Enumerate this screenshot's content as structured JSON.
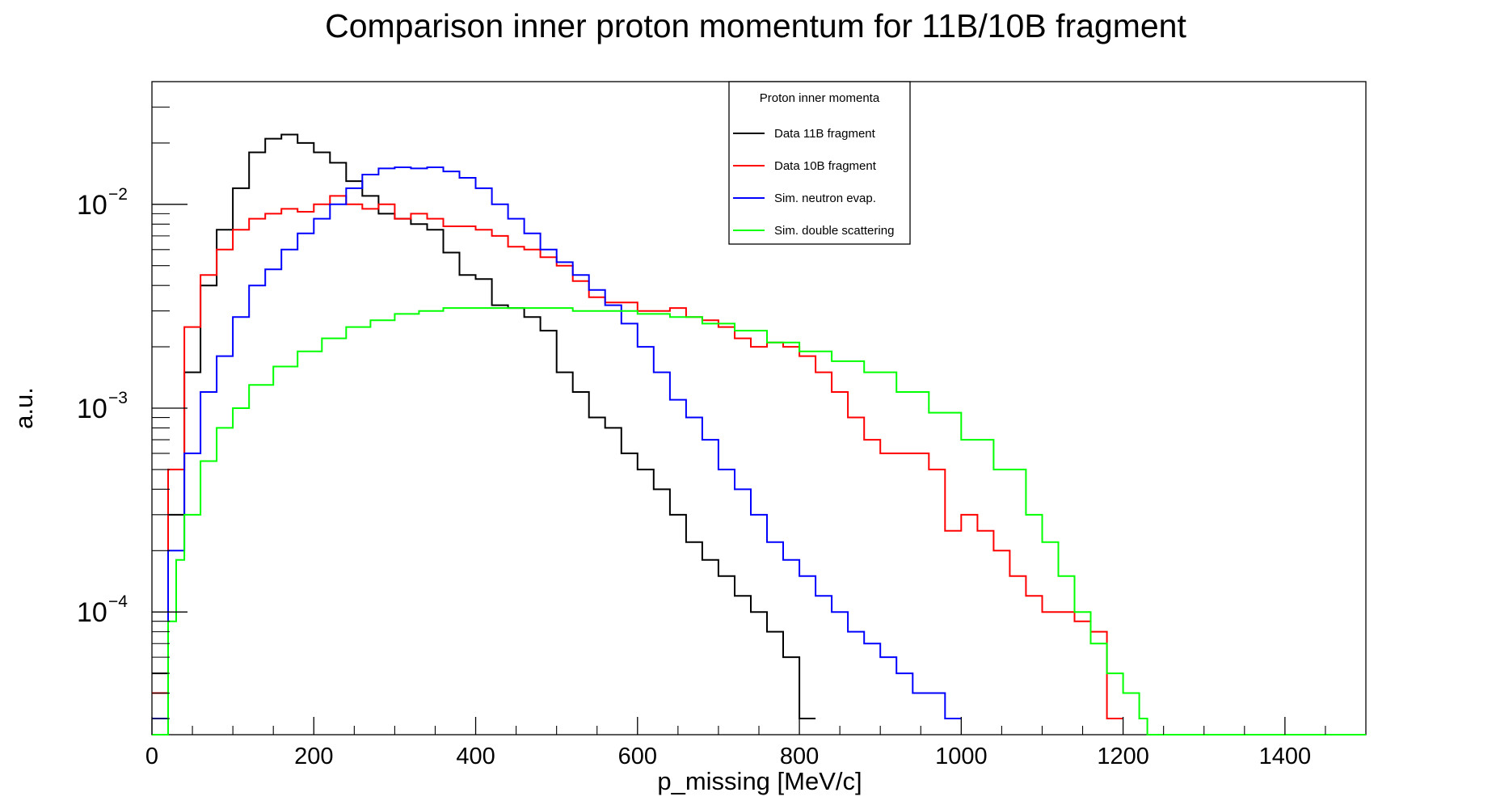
{
  "chart_data": {
    "type": "line",
    "title": "Comparison inner proton momentum for 11B/10B fragment",
    "xlabel": "p_missing [MeV/c]",
    "ylabel": "a.u.",
    "xlim": [
      0,
      1500
    ],
    "ylim": [
      2.5e-05,
      0.04
    ],
    "y_scale": "log",
    "grid": false,
    "x_ticks": [
      {
        "value": 0,
        "label": "0"
      },
      {
        "value": 200,
        "label": "200"
      },
      {
        "value": 400,
        "label": "400"
      },
      {
        "value": 600,
        "label": "600"
      },
      {
        "value": 800,
        "label": "800"
      },
      {
        "value": 1000,
        "label": "1000"
      },
      {
        "value": 1200,
        "label": "1200"
      },
      {
        "value": 1400,
        "label": "1400"
      }
    ],
    "y_ticks": [
      {
        "value": 0.01,
        "base": "10",
        "exp": "−2"
      },
      {
        "value": 0.001,
        "base": "10",
        "exp": "−3"
      },
      {
        "value": 0.0001,
        "base": "10",
        "exp": "−4"
      }
    ],
    "legend": {
      "title": "Proton inner momenta",
      "position": "top-center",
      "entries": [
        {
          "name": "Data 11B fragment",
          "color": "#000000"
        },
        {
          "name": "Data 10B fragment",
          "color": "#ff0000"
        },
        {
          "name": "Sim. neutron evap.",
          "color": "#0000ff"
        },
        {
          "name": "Sim. double scattering",
          "color": "#00ff00"
        }
      ]
    },
    "series": [
      {
        "name": "Data 11B fragment",
        "color": "#000000",
        "points": [
          [
            0,
            5e-05
          ],
          [
            20,
            0.0003
          ],
          [
            40,
            0.0015
          ],
          [
            60,
            0.004
          ],
          [
            80,
            0.0075
          ],
          [
            100,
            0.012
          ],
          [
            120,
            0.018
          ],
          [
            140,
            0.021
          ],
          [
            160,
            0.022
          ],
          [
            180,
            0.02
          ],
          [
            200,
            0.018
          ],
          [
            220,
            0.016
          ],
          [
            240,
            0.013
          ],
          [
            260,
            0.011
          ],
          [
            280,
            0.009
          ],
          [
            300,
            0.0085
          ],
          [
            320,
            0.008
          ],
          [
            340,
            0.0075
          ],
          [
            360,
            0.0058
          ],
          [
            380,
            0.0045
          ],
          [
            400,
            0.0043
          ],
          [
            420,
            0.0032
          ],
          [
            440,
            0.0031
          ],
          [
            460,
            0.0028
          ],
          [
            480,
            0.0024
          ],
          [
            500,
            0.0015
          ],
          [
            520,
            0.0012
          ],
          [
            540,
            0.0009
          ],
          [
            560,
            0.0008
          ],
          [
            580,
            0.0006
          ],
          [
            600,
            0.0005
          ],
          [
            620,
            0.0004
          ],
          [
            640,
            0.0003
          ],
          [
            660,
            0.00022
          ],
          [
            680,
            0.00018
          ],
          [
            700,
            0.00015
          ],
          [
            720,
            0.00012
          ],
          [
            740,
            0.0001
          ],
          [
            760,
            8e-05
          ],
          [
            780,
            6e-05
          ],
          [
            800,
            3e-05
          ]
        ]
      },
      {
        "name": "Data 10B fragment",
        "color": "#ff0000",
        "points": [
          [
            0,
            4e-05
          ],
          [
            20,
            0.0005
          ],
          [
            40,
            0.0025
          ],
          [
            60,
            0.0045
          ],
          [
            80,
            0.006
          ],
          [
            100,
            0.0075
          ],
          [
            120,
            0.0085
          ],
          [
            140,
            0.009
          ],
          [
            160,
            0.0095
          ],
          [
            180,
            0.0092
          ],
          [
            200,
            0.01
          ],
          [
            220,
            0.011
          ],
          [
            240,
            0.01
          ],
          [
            260,
            0.0095
          ],
          [
            280,
            0.01
          ],
          [
            300,
            0.0085
          ],
          [
            320,
            0.009
          ],
          [
            340,
            0.0085
          ],
          [
            360,
            0.0078
          ],
          [
            380,
            0.0078
          ],
          [
            400,
            0.0075
          ],
          [
            420,
            0.007
          ],
          [
            440,
            0.0062
          ],
          [
            460,
            0.006
          ],
          [
            480,
            0.0055
          ],
          [
            500,
            0.005
          ],
          [
            520,
            0.0042
          ],
          [
            540,
            0.0035
          ],
          [
            560,
            0.0033
          ],
          [
            580,
            0.0033
          ],
          [
            600,
            0.003
          ],
          [
            620,
            0.003
          ],
          [
            640,
            0.0031
          ],
          [
            660,
            0.0028
          ],
          [
            680,
            0.0027
          ],
          [
            700,
            0.0025
          ],
          [
            720,
            0.0022
          ],
          [
            740,
            0.002
          ],
          [
            760,
            0.0021
          ],
          [
            780,
            0.002
          ],
          [
            800,
            0.0018
          ],
          [
            820,
            0.0015
          ],
          [
            840,
            0.0012
          ],
          [
            860,
            0.0009
          ],
          [
            880,
            0.0007
          ],
          [
            900,
            0.0006
          ],
          [
            920,
            0.0006
          ],
          [
            940,
            0.0006
          ],
          [
            960,
            0.0005
          ],
          [
            980,
            0.00025
          ],
          [
            1000,
            0.0003
          ],
          [
            1020,
            0.00025
          ],
          [
            1040,
            0.0002
          ],
          [
            1060,
            0.00015
          ],
          [
            1080,
            0.00012
          ],
          [
            1100,
            0.0001
          ],
          [
            1120,
            0.0001
          ],
          [
            1140,
            9e-05
          ],
          [
            1160,
            8e-05
          ],
          [
            1180,
            3e-05
          ]
        ]
      },
      {
        "name": "Sim. neutron evap.",
        "color": "#0000ff",
        "points": [
          [
            0,
            3e-05
          ],
          [
            20,
            0.0002
          ],
          [
            40,
            0.0006
          ],
          [
            60,
            0.0012
          ],
          [
            80,
            0.0018
          ],
          [
            100,
            0.0028
          ],
          [
            120,
            0.004
          ],
          [
            140,
            0.0048
          ],
          [
            160,
            0.006
          ],
          [
            180,
            0.0072
          ],
          [
            200,
            0.0085
          ],
          [
            220,
            0.01
          ],
          [
            240,
            0.012
          ],
          [
            260,
            0.014
          ],
          [
            280,
            0.015
          ],
          [
            300,
            0.0152
          ],
          [
            320,
            0.015
          ],
          [
            340,
            0.0152
          ],
          [
            360,
            0.0145
          ],
          [
            380,
            0.0135
          ],
          [
            400,
            0.012
          ],
          [
            420,
            0.01
          ],
          [
            440,
            0.0085
          ],
          [
            460,
            0.0072
          ],
          [
            480,
            0.006
          ],
          [
            500,
            0.0052
          ],
          [
            520,
            0.0045
          ],
          [
            540,
            0.0038
          ],
          [
            560,
            0.0032
          ],
          [
            580,
            0.0026
          ],
          [
            600,
            0.002
          ],
          [
            620,
            0.0015
          ],
          [
            640,
            0.0011
          ],
          [
            660,
            0.0009
          ],
          [
            680,
            0.0007
          ],
          [
            700,
            0.0005
          ],
          [
            720,
            0.0004
          ],
          [
            740,
            0.0003
          ],
          [
            760,
            0.00022
          ],
          [
            780,
            0.00018
          ],
          [
            800,
            0.00015
          ],
          [
            820,
            0.00012
          ],
          [
            840,
            0.0001
          ],
          [
            860,
            8e-05
          ],
          [
            880,
            7e-05
          ],
          [
            900,
            6e-05
          ],
          [
            920,
            5e-05
          ],
          [
            940,
            4e-05
          ],
          [
            960,
            4e-05
          ],
          [
            980,
            3e-05
          ]
        ]
      },
      {
        "name": "Sim. double scattering",
        "color": "#00ff00",
        "points": [
          [
            0,
            2.5e-05
          ],
          [
            10,
            2.5e-05
          ],
          [
            20,
            9e-05
          ],
          [
            30,
            0.00018
          ],
          [
            40,
            0.0003
          ],
          [
            60,
            0.00055
          ],
          [
            80,
            0.0008
          ],
          [
            100,
            0.001
          ],
          [
            120,
            0.0013
          ],
          [
            150,
            0.0016
          ],
          [
            180,
            0.0019
          ],
          [
            210,
            0.0022
          ],
          [
            240,
            0.0025
          ],
          [
            270,
            0.0027
          ],
          [
            300,
            0.0029
          ],
          [
            330,
            0.003
          ],
          [
            360,
            0.0031
          ],
          [
            400,
            0.0031
          ],
          [
            440,
            0.0031
          ],
          [
            480,
            0.0031
          ],
          [
            520,
            0.003
          ],
          [
            560,
            0.003
          ],
          [
            600,
            0.0029
          ],
          [
            640,
            0.0028
          ],
          [
            680,
            0.0026
          ],
          [
            720,
            0.0024
          ],
          [
            760,
            0.0021
          ],
          [
            800,
            0.0019
          ],
          [
            840,
            0.0017
          ],
          [
            880,
            0.0015
          ],
          [
            920,
            0.0012
          ],
          [
            960,
            0.00095
          ],
          [
            1000,
            0.0007
          ],
          [
            1040,
            0.0005
          ],
          [
            1080,
            0.0003
          ],
          [
            1100,
            0.00022
          ],
          [
            1120,
            0.00015
          ],
          [
            1140,
            0.0001
          ],
          [
            1160,
            7e-05
          ],
          [
            1180,
            5e-05
          ],
          [
            1200,
            4e-05
          ],
          [
            1220,
            3e-05
          ],
          [
            1230,
            2.5e-05
          ],
          [
            1500,
            2.5e-05
          ]
        ]
      }
    ]
  }
}
